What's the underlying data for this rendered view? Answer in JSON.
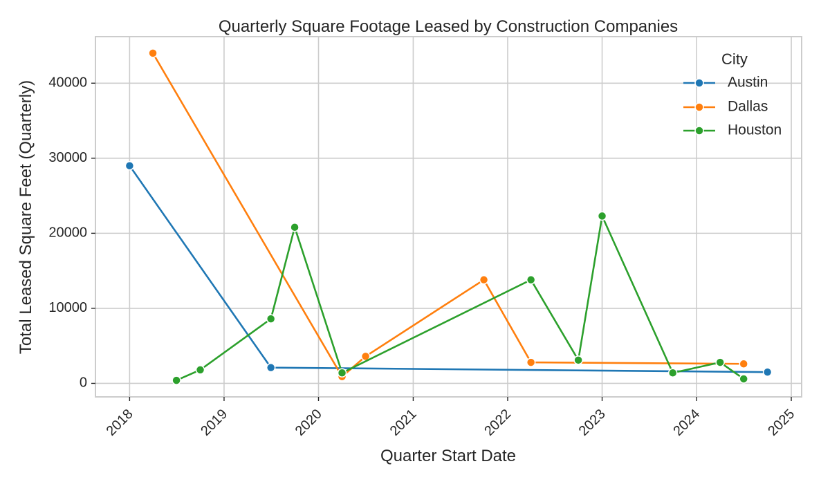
{
  "chart_data": {
    "type": "line",
    "title": "Quarterly Square Footage Leased by Construction Companies",
    "xlabel": "Quarter Start Date",
    "ylabel": "Total Leased Square Feet (Quarterly)",
    "xlim": [
      "2017-08-22",
      "2025-02-10"
    ],
    "ylim": [
      -1800,
      46200
    ],
    "x_ticks": [
      "2018",
      "2019",
      "2020",
      "2021",
      "2022",
      "2023",
      "2024",
      "2025"
    ],
    "y_ticks": [
      0,
      10000,
      20000,
      30000,
      40000
    ],
    "grid": true,
    "legend": {
      "title": "City",
      "placement": "top-right"
    },
    "series": [
      {
        "name": "Austin",
        "color": "#1f77b4",
        "points": [
          {
            "x": "2018-01-01",
            "y": 29000
          },
          {
            "x": "2019-07-01",
            "y": 2100
          },
          {
            "x": "2024-10-01",
            "y": 1500
          }
        ]
      },
      {
        "name": "Dallas",
        "color": "#ff7f0e",
        "points": [
          {
            "x": "2018-04-01",
            "y": 44000
          },
          {
            "x": "2020-04-01",
            "y": 900
          },
          {
            "x": "2020-07-01",
            "y": 3600
          },
          {
            "x": "2021-10-01",
            "y": 13800
          },
          {
            "x": "2022-04-01",
            "y": 2800
          },
          {
            "x": "2024-07-01",
            "y": 2600
          }
        ]
      },
      {
        "name": "Houston",
        "color": "#2ca02c",
        "points": [
          {
            "x": "2018-07-01",
            "y": 400
          },
          {
            "x": "2018-10-01",
            "y": 1800
          },
          {
            "x": "2019-07-01",
            "y": 8600
          },
          {
            "x": "2019-10-01",
            "y": 20800
          },
          {
            "x": "2020-04-01",
            "y": 1400
          },
          {
            "x": "2022-04-01",
            "y": 13800
          },
          {
            "x": "2022-10-01",
            "y": 3100
          },
          {
            "x": "2023-01-01",
            "y": 22300
          },
          {
            "x": "2023-10-01",
            "y": 1400
          },
          {
            "x": "2024-04-01",
            "y": 2800
          },
          {
            "x": "2024-07-01",
            "y": 600
          }
        ]
      }
    ]
  }
}
